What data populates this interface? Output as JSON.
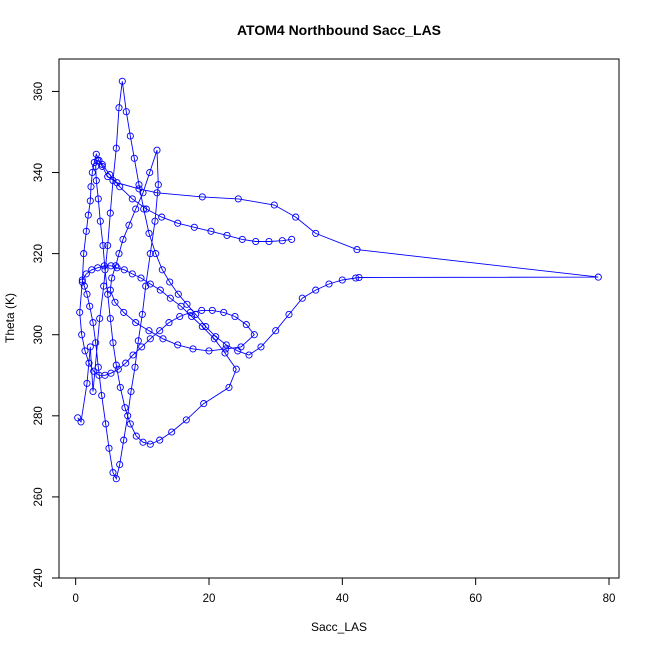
{
  "chart_data": {
    "type": "line",
    "title": "ATOM4 Northbound Sacc_LAS",
    "xlabel": "Sacc_LAS",
    "ylabel": "Theta (K)",
    "xlim": [
      -2.5,
      81.5
    ],
    "ylim": [
      240,
      368
    ],
    "xticks": [
      0,
      20,
      40,
      60,
      80
    ],
    "yticks": [
      240,
      260,
      280,
      300,
      320,
      340,
      360
    ],
    "grid": false,
    "legend": "none",
    "colors": {
      "series": "#0000ff",
      "axis": "#000000"
    },
    "markers": "open-circle",
    "series": [
      {
        "x": [
          0.3,
          0.8,
          1.7,
          2.2,
          2.6,
          3.6,
          4.2,
          4.8,
          5.2,
          5.6,
          6.1,
          6.5,
          7.0,
          7.6,
          8.2,
          8.8,
          9.5,
          10.2,
          11.0,
          12.0,
          13.0,
          14.1,
          15.4,
          16.7,
          18.0,
          19.5,
          21.0,
          22.6,
          24.3,
          26.0,
          27.8,
          30.0,
          32.0,
          34.0,
          36.0,
          38.0,
          40.0,
          42.0,
          42.5,
          78.4,
          42.2,
          36.0,
          33.0,
          29.8,
          24.4,
          19.0,
          12.2,
          9.5,
          6.2,
          4.8,
          4.0,
          3.5,
          3.1,
          2.8,
          2.5,
          2.3,
          2.2,
          1.9,
          1.6,
          1.2,
          1.0,
          0.6,
          0.9,
          1.4,
          2.0,
          2.7,
          3.5,
          4.4,
          5.3,
          6.4,
          7.5,
          8.6,
          9.9,
          11.2,
          12.6,
          14.0,
          15.6,
          17.2,
          18.9,
          20.5,
          22.2,
          23.9,
          25.6,
          26.8,
          24.8,
          22.5,
          20.0,
          17.6,
          15.3,
          13.1,
          11.0,
          9.0,
          7.2,
          5.9,
          5.2,
          5.4,
          6.0,
          6.5,
          7.1,
          8.0,
          9.0,
          10.1,
          11.1,
          12.2,
          12.4,
          11.9,
          11.2,
          10.5,
          10.0,
          9.4,
          8.9,
          8.3,
          7.8,
          7.2,
          6.6,
          6.1,
          5.6,
          5.0,
          4.5,
          3.9,
          3.4,
          3.0,
          2.6,
          2.1,
          1.7,
          1.3,
          1.0,
          1.6,
          2.4,
          3.3,
          4.3,
          5.3,
          6.2,
          7.3,
          8.5,
          9.8,
          11.2,
          12.7,
          14.2,
          15.8,
          17.4,
          19.0,
          20.8,
          22.4,
          24.1,
          23.0,
          19.2,
          16.6,
          14.4,
          12.6,
          11.2,
          10.1,
          9.1,
          8.2,
          7.4,
          6.7,
          6.1,
          5.6,
          5.2,
          4.8,
          4.4,
          4.1,
          3.7,
          3.4,
          3.1,
          3.0,
          3.3,
          4.0,
          5.1,
          6.6,
          8.5,
          10.6,
          12.9,
          15.3,
          17.8,
          20.3,
          22.7,
          25.0,
          27.0,
          29.0,
          31.0,
          32.4
        ],
        "y": [
          279.5,
          278.5,
          288.0,
          297.0,
          286.0,
          304.0,
          312.0,
          322.0,
          330.0,
          338.0,
          346.0,
          356.0,
          362.5,
          355.0,
          349.0,
          343.5,
          337.0,
          331.0,
          325.0,
          320.0,
          316.0,
          313.0,
          310.0,
          307.5,
          305.0,
          302.0,
          299.5,
          297.5,
          296.0,
          295.0,
          297.0,
          301.0,
          305.0,
          309.0,
          311.0,
          312.5,
          313.5,
          314.0,
          314.1,
          314.2,
          321.0,
          325.0,
          329.0,
          332.0,
          333.5,
          334.0,
          335.0,
          336.0,
          337.5,
          339.0,
          341.5,
          343.0,
          344.5,
          342.5,
          340.0,
          336.5,
          333.0,
          329.5,
          325.5,
          320.0,
          313.0,
          305.5,
          300.0,
          296.0,
          293.0,
          291.0,
          290.0,
          290.0,
          290.5,
          291.5,
          293.0,
          295.0,
          297.0,
          299.0,
          301.0,
          303.0,
          304.5,
          305.5,
          306.0,
          306.0,
          305.5,
          304.5,
          302.5,
          300.0,
          297.0,
          296.5,
          296.0,
          296.5,
          297.5,
          299.0,
          301.0,
          303.0,
          305.5,
          308.0,
          311.0,
          314.0,
          317.0,
          320.0,
          323.5,
          327.0,
          331.0,
          335.0,
          340.0,
          345.5,
          337.0,
          328.0,
          320.0,
          312.0,
          305.0,
          298.5,
          292.0,
          286.0,
          280.0,
          274.0,
          268.0,
          264.5,
          266.0,
          272.0,
          278.0,
          285.0,
          292.0,
          298.0,
          303.0,
          307.0,
          310.0,
          312.0,
          313.5,
          315.0,
          316.0,
          316.5,
          317.0,
          317.0,
          316.5,
          316.0,
          315.0,
          314.0,
          312.5,
          311.0,
          309.0,
          307.0,
          304.5,
          302.0,
          299.0,
          295.5,
          291.5,
          287.0,
          283.0,
          279.0,
          276.0,
          274.0,
          273.0,
          273.5,
          275.0,
          278.0,
          282.0,
          287.0,
          292.5,
          298.0,
          304.0,
          310.0,
          316.0,
          322.0,
          328.0,
          333.5,
          338.0,
          341.5,
          343.0,
          342.0,
          339.5,
          336.5,
          333.5,
          331.0,
          329.0,
          327.5,
          326.5,
          325.5,
          324.5,
          323.5,
          323.0,
          323.0,
          323.2,
          323.5
        ]
      }
    ]
  }
}
